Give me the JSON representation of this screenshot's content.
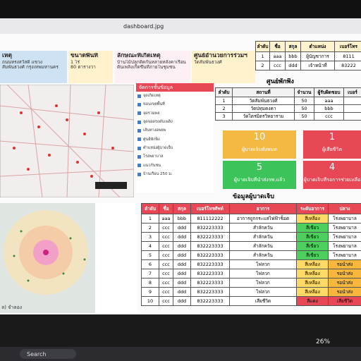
{
  "window": {
    "title": "dashboard.jpg"
  },
  "cards": [
    {
      "title": "เหตุ",
      "lines": [
        "ถนนทรงสวัสดิ์ แขวง",
        "สัมพันธวงศ์ กรุงเทพมหานคร"
      ],
      "color": "#cfe2f3"
    },
    {
      "title": "ขนาดพื้นที่",
      "lines": [
        "1 ไร่",
        "80 ตารางวา"
      ],
      "color": "#fff2cc"
    },
    {
      "title": "ลักษณะที่เกิดเหตุ",
      "lines": [
        "บ้านไม้ปลูกติดกันหลายหลังคาเรือน",
        "ต้นเพลิงเกิดขึ้นที่ภายในชุมชน"
      ],
      "color": "#fdf0f4"
    },
    {
      "title": "ศูนย์อำนวยการร่วมฯ",
      "lines": [
        "วัดสัมพันธวงศ์"
      ],
      "color": "#fff2cc"
    }
  ],
  "staff_table": {
    "header": [
      "ลำดับ",
      "ชื่อ",
      "สกุล",
      "ตำแหน่ง",
      "เบอร์โทร"
    ],
    "rows": [
      [
        "1",
        "aaa",
        "bbb",
        "ผู้บัญชาการ",
        "8111"
      ],
      [
        "2",
        "ccc",
        "ddd",
        "เจ้าหน้าที่",
        "83222"
      ]
    ]
  },
  "shelter": {
    "title": "ศูนย์พักพิง",
    "header": [
      "ลำดับ",
      "สถานที่",
      "จำนวน",
      "ผู้รับผิดชอบ",
      "เบอร์"
    ],
    "rows": [
      [
        "1",
        "วัดสัมพันธวงศ์",
        "50",
        "aaa",
        ""
      ],
      [
        "2",
        "วัดปทุมคงคา",
        "50",
        "bbb",
        ""
      ],
      [
        "3",
        "วัดไตรมิตรวิทยาราม",
        "50",
        "ccc",
        ""
      ]
    ]
  },
  "stats": [
    {
      "value": "10",
      "label": "ผู้บาดเจ็บทั้งหมด",
      "color": "#f4b942"
    },
    {
      "value": "1",
      "label": "ผู้เสียชีวิต",
      "color": "#e84855"
    },
    {
      "value": "5",
      "label": "ผู้บาดเจ็บที่นำส่งรพ.แล้ว",
      "color": "#3cc45a"
    },
    {
      "value": "4",
      "label": "ผู้บาดเจ็บที่รอการช่วยเหลือ",
      "color": "#e84855"
    }
  ],
  "layers": {
    "title": "จัดการชั้นข้อมูล",
    "items": [
      "จุดเกิดเหตุ",
      "ขอบเขตพื้นที่",
      "จุดรวมพล",
      "จุดจอดรถดับเพลิง",
      "เส้นทางอพยพ",
      "ศูนย์พักพิง",
      "ตำแหน่งผู้บาดเจ็บ",
      "โรงพยาบาล",
      "แนวกันชน",
      "บ้านเรือน 250 ม."
    ]
  },
  "injured": {
    "title": "ข้อมูลผู้บาดเจ็บ",
    "header": [
      "ลำดับ",
      "ชื่อ",
      "สกุล",
      "เบอร์โทรศัพท์",
      "อาการ",
      "ระดับอาการ",
      "ปลาง"
    ],
    "rows": [
      {
        "cells": [
          "1",
          "aaa",
          "bbb",
          "811112222",
          "อาการถูกกระแสไฟฟ้าช็อต",
          "สีเหลือง",
          "โรงพยาบาล"
        ],
        "level_color": "#ffd966",
        "status_color": "#ffffff"
      },
      {
        "cells": [
          "2",
          "ccc",
          "ddd",
          "832223333",
          "สำลักควัน",
          "สีเขียว",
          "โรงพยาบาล"
        ],
        "level_color": "#4ccf5c",
        "status_color": "#ffffff"
      },
      {
        "cells": [
          "3",
          "ccc",
          "ddd",
          "832223333",
          "สำลักควัน",
          "สีเขียว",
          "โรงพยาบาล"
        ],
        "level_color": "#4ccf5c",
        "status_color": "#ffffff"
      },
      {
        "cells": [
          "4",
          "ccc",
          "ddd",
          "832223333",
          "สำลักควัน",
          "สีเขียว",
          "โรงพยาบาล"
        ],
        "level_color": "#4ccf5c",
        "status_color": "#ffffff"
      },
      {
        "cells": [
          "5",
          "ccc",
          "ddd",
          "832223333",
          "สำลักควัน",
          "สีเขียว",
          "โรงพยาบาล"
        ],
        "level_color": "#4ccf5c",
        "status_color": "#ffffff"
      },
      {
        "cells": [
          "6",
          "ccc",
          "ddd",
          "832223333",
          "ไฟลวก",
          "สีเหลือง",
          "รอนำส่ง"
        ],
        "level_color": "#ffd966",
        "status_color": "#f6b73c"
      },
      {
        "cells": [
          "7",
          "ccc",
          "ddd",
          "832223333",
          "ไฟลวก",
          "สีเหลือง",
          "รอนำส่ง"
        ],
        "level_color": "#ffd966",
        "status_color": "#f6b73c"
      },
      {
        "cells": [
          "8",
          "ccc",
          "ddd",
          "832223333",
          "ไฟลวก",
          "สีเหลือง",
          "รอนำส่ง"
        ],
        "level_color": "#ffd966",
        "status_color": "#f6b73c"
      },
      {
        "cells": [
          "9",
          "ccc",
          "ddd",
          "832223333",
          "ไฟลวก",
          "สีเหลือง",
          "รอนำส่ง"
        ],
        "level_color": "#ffd966",
        "status_color": "#f6b73c"
      },
      {
        "cells": [
          "10",
          "ccc",
          "ddd",
          "832223333",
          "เสียชีวิต",
          "สีแดง",
          "เสียชีวิต"
        ],
        "level_color": "#e84855",
        "status_color": "#e84855"
      }
    ]
  },
  "map_caption": "ล) จำลอง",
  "taskbar": {
    "search": "Search",
    "zoom": "26%"
  }
}
